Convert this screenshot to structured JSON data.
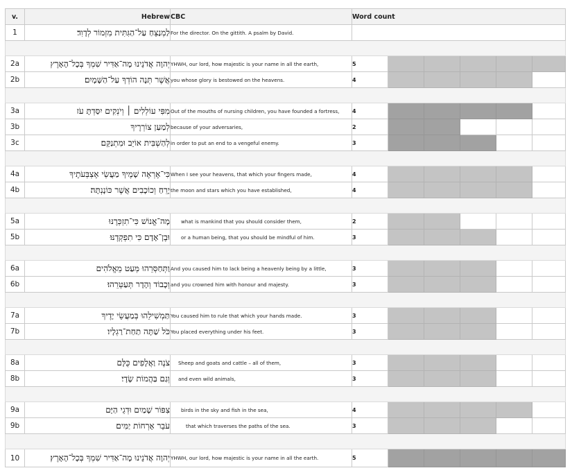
{
  "header": {
    "v": "v.",
    "hebrew": "Hebrew",
    "cbc": "CBC",
    "word_count": "Word count"
  },
  "colors": {
    "fill_light": "#c4c4c4",
    "fill_dark": "#a2a2a2",
    "empty": "#ffffff",
    "separator": "#f4f4f4"
  },
  "rows": [
    {
      "v": "1",
      "hebrew": "לַמְנַצֵּחַ עַל־הַגִּתִּית מִזְמוֹר לְדָוִד׃",
      "cbc": "For the director. On the gittith. A psalm by David.",
      "count": "",
      "indent": 0,
      "shade": "light"
    },
    {
      "gap": true
    },
    {
      "v": "2a",
      "hebrew": "יְהוָה אֲדֹנֵינוּ מָה־אַדִּיר שִׁמְךָ בְּכָל־הָאָרֶץ",
      "cbc": "YHWH, our lord, how majestic is your name in all the earth,",
      "count": "5",
      "indent": 0,
      "shade": "light"
    },
    {
      "v": "2b",
      "hebrew": "אֲשֶׁר תְּנָה הוֹדְךָ עַל־הַשָּׁמָיִם׃",
      "cbc": "you whose glory is bestowed on the heavens.",
      "count": "4",
      "indent": 0,
      "shade": "light"
    },
    {
      "gap": true
    },
    {
      "v": "3a",
      "hebrew": "מִפִּי עוֹלְלִים ׀ וְיֹנְקִים יִסַּדְתָּ עֹז",
      "cbc": "Out of the mouths of nursing children, you have founded a fortress,",
      "count": "4",
      "indent": 0,
      "shade": "dark"
    },
    {
      "v": "3b",
      "hebrew": "לְמַעַן צוֹרְרֶיךָ",
      "cbc": "because of your adversaries,",
      "count": "2",
      "indent": 0,
      "shade": "dark"
    },
    {
      "v": "3c",
      "hebrew": "לְהַשְׁבִּית אוֹיֵב וּמִתְנַקֵּם׃",
      "cbc": "in order to put an end to a vengeful enemy.",
      "count": "3",
      "indent": 0,
      "shade": "dark"
    },
    {
      "gap": true
    },
    {
      "v": "4a",
      "hebrew": "כִּי־אֶרְאֶה שָׁמֶיךָ מַעֲשֵׂי אֶצְבְּעֹתֶיךָ",
      "cbc": "When I see your heavens, that which your fingers made,",
      "count": "4",
      "indent": 0,
      "shade": "light"
    },
    {
      "v": "4b",
      "hebrew": "יָרֵחַ וְכוֹכָבִים אֲשֶׁר כּוֹנָנְתָּה׃",
      "cbc": "the moon and stars which you have established,",
      "count": "4",
      "indent": 0,
      "shade": "light"
    },
    {
      "gap": true
    },
    {
      "v": "5a",
      "hebrew": "מָה־אֱנוֹשׁ כִּי־תִזְכְּרֶנּוּ",
      "cbc": "what is mankind that you should consider them,",
      "count": "2",
      "indent": 2,
      "shade": "light"
    },
    {
      "v": "5b",
      "hebrew": "וּבֶן־אָדָם כִּי תִפְקְדֶנּוּ׃",
      "cbc": "or a human being, that you should be mindful of him.",
      "count": "3",
      "indent": 2,
      "shade": "light"
    },
    {
      "gap": true
    },
    {
      "v": "6a",
      "hebrew": "וַתְּחַסְּרֵהוּ מְּעַט מֵאֱלֹהִים",
      "cbc": "And you caused him to lack being a heavenly being by a little,",
      "count": "3",
      "indent": 0,
      "shade": "light"
    },
    {
      "v": "6b",
      "hebrew": "וְכָבוֹד וְהָדָר תְּעַטְּרֵהוּ׃",
      "cbc": "and you crowned him with honour and majesty.",
      "count": "3",
      "indent": 0,
      "shade": "light"
    },
    {
      "gap": true
    },
    {
      "v": "7a",
      "hebrew": "תַּמְשִׁילֵהוּ בְּמַעֲשֵׂי יָדֶיךָ",
      "cbc": "You caused him to rule that which your hands made.",
      "count": "3",
      "indent": 0,
      "shade": "light"
    },
    {
      "v": "7b",
      "hebrew": "כֹּל שַׁתָּה תַחַת־רַגְלָיו׃",
      "cbc": "You placed everything under his feet.",
      "count": "3",
      "indent": 0,
      "shade": "light"
    },
    {
      "gap": true
    },
    {
      "v": "8a",
      "hebrew": "צֹנֶה וַאֲלָפִים כֻּלָּם",
      "cbc": "Sheep and goats and cattle – all of them,",
      "count": "3",
      "indent": 1,
      "shade": "light"
    },
    {
      "v": "8b",
      "hebrew": "וְגַם בַּהֲמוֹת שָׂדָי׃",
      "cbc": "and even wild animals,",
      "count": "3",
      "indent": 1,
      "shade": "light"
    },
    {
      "gap": true
    },
    {
      "v": "9a",
      "hebrew": "צִפּוֹר שָׁמַיִם וּדְגֵי הַיָּם",
      "cbc": "birds in the sky and fish in the sea,",
      "count": "4",
      "indent": 2,
      "shade": "light"
    },
    {
      "v": "9b",
      "hebrew": "עֹבֵר אָרְחוֹת יַמִּים׃",
      "cbc": "that which traverses the paths of the sea.",
      "count": "3",
      "indent": 3,
      "shade": "light"
    },
    {
      "gap": true
    },
    {
      "v": "10",
      "hebrew": "יְהוָה אֲדֹנֵינוּ מָה־אַדִּיר שִׁמְךָ בְּכָל־הָאָרֶץ׃",
      "cbc": "YHWH, our lord, how majestic is your name in all the earth.",
      "count": "5",
      "indent": 0,
      "shade": "dark"
    }
  ]
}
